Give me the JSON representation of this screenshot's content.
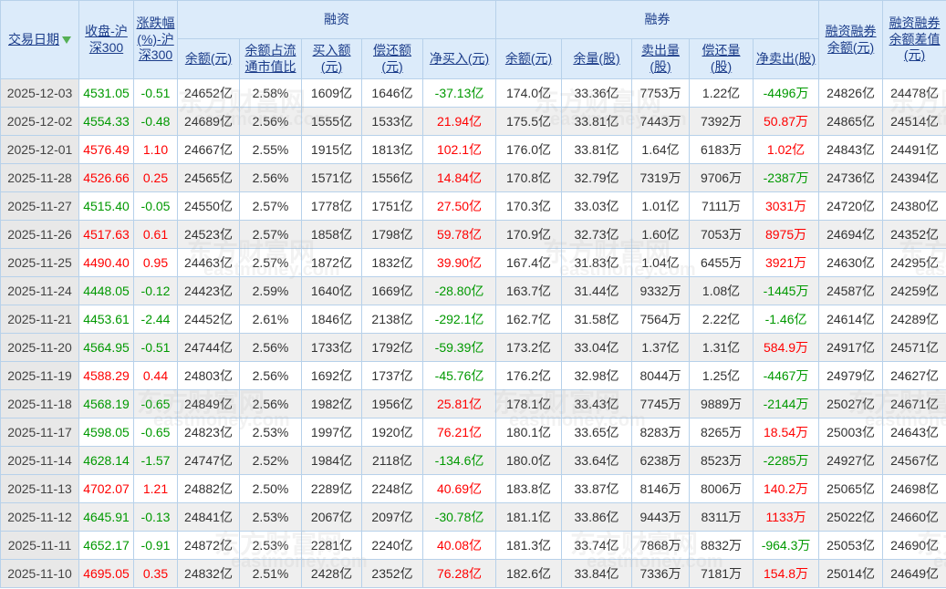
{
  "table": {
    "header": {
      "date": "交易日期",
      "close": "收盘-沪深300",
      "chg": "涨跌幅(%)-沪深300",
      "rz_group": "融资",
      "rq_group": "融券",
      "rzrq_balance": "融资融券余额(元)",
      "rzrq_diff": "融资融券余额差值(元)",
      "sub": [
        "余额(元)",
        "余额占流通市值比",
        "买入额(元)",
        "偿还额(元)",
        "净买入(元)",
        "余额(元)",
        "余量(股)",
        "卖出量(股)",
        "偿还量(股)",
        "净卖出(股)"
      ],
      "sort_icon": "green-down-arrow",
      "sorted_by": "交易日期",
      "sort_direction": "desc"
    },
    "rows": [
      {
        "values": [
          "2025-12-03",
          "4531.05",
          "-0.51",
          "24652亿",
          "2.58%",
          "1609亿",
          "1646亿",
          "-37.13亿",
          "174.0亿",
          "33.36亿",
          "7753万",
          "1.22亿",
          "-4496万",
          "24826亿",
          "24478亿"
        ],
        "colors": [
          "",
          "g",
          "g",
          "",
          "",
          "",
          "",
          "g",
          "",
          "",
          "",
          "",
          "g",
          "",
          ""
        ]
      },
      {
        "values": [
          "2025-12-02",
          "4554.33",
          "-0.48",
          "24689亿",
          "2.56%",
          "1555亿",
          "1533亿",
          "21.94亿",
          "175.5亿",
          "33.81亿",
          "7443万",
          "7392万",
          "50.87万",
          "24865亿",
          "24514亿"
        ],
        "colors": [
          "",
          "g",
          "g",
          "",
          "",
          "",
          "",
          "r",
          "",
          "",
          "",
          "",
          "r",
          "",
          ""
        ]
      },
      {
        "values": [
          "2025-12-01",
          "4576.49",
          "1.10",
          "24667亿",
          "2.55%",
          "1915亿",
          "1813亿",
          "102.1亿",
          "176.0亿",
          "33.81亿",
          "1.64亿",
          "6183万",
          "1.02亿",
          "24843亿",
          "24491亿"
        ],
        "colors": [
          "",
          "r",
          "r",
          "",
          "",
          "",
          "",
          "r",
          "",
          "",
          "",
          "",
          "r",
          "",
          ""
        ]
      },
      {
        "values": [
          "2025-11-28",
          "4526.66",
          "0.25",
          "24565亿",
          "2.56%",
          "1571亿",
          "1556亿",
          "14.84亿",
          "170.8亿",
          "32.79亿",
          "7319万",
          "9706万",
          "-2387万",
          "24736亿",
          "24394亿"
        ],
        "colors": [
          "",
          "r",
          "r",
          "",
          "",
          "",
          "",
          "r",
          "",
          "",
          "",
          "",
          "g",
          "",
          ""
        ]
      },
      {
        "values": [
          "2025-11-27",
          "4515.40",
          "-0.05",
          "24550亿",
          "2.57%",
          "1778亿",
          "1751亿",
          "27.50亿",
          "170.3亿",
          "33.03亿",
          "1.01亿",
          "7111万",
          "3031万",
          "24720亿",
          "24380亿"
        ],
        "colors": [
          "",
          "g",
          "g",
          "",
          "",
          "",
          "",
          "r",
          "",
          "",
          "",
          "",
          "r",
          "",
          ""
        ]
      },
      {
        "values": [
          "2025-11-26",
          "4517.63",
          "0.61",
          "24523亿",
          "2.57%",
          "1858亿",
          "1798亿",
          "59.78亿",
          "170.9亿",
          "32.73亿",
          "1.60亿",
          "7053万",
          "8975万",
          "24694亿",
          "24352亿"
        ],
        "colors": [
          "",
          "r",
          "r",
          "",
          "",
          "",
          "",
          "r",
          "",
          "",
          "",
          "",
          "r",
          "",
          ""
        ]
      },
      {
        "values": [
          "2025-11-25",
          "4490.40",
          "0.95",
          "24463亿",
          "2.57%",
          "1872亿",
          "1832亿",
          "39.90亿",
          "167.4亿",
          "31.83亿",
          "1.04亿",
          "6455万",
          "3921万",
          "24630亿",
          "24295亿"
        ],
        "colors": [
          "",
          "r",
          "r",
          "",
          "",
          "",
          "",
          "r",
          "",
          "",
          "",
          "",
          "r",
          "",
          ""
        ]
      },
      {
        "values": [
          "2025-11-24",
          "4448.05",
          "-0.12",
          "24423亿",
          "2.59%",
          "1640亿",
          "1669亿",
          "-28.80亿",
          "163.7亿",
          "31.44亿",
          "9332万",
          "1.08亿",
          "-1445万",
          "24587亿",
          "24259亿"
        ],
        "colors": [
          "",
          "g",
          "g",
          "",
          "",
          "",
          "",
          "g",
          "",
          "",
          "",
          "",
          "g",
          "",
          ""
        ]
      },
      {
        "values": [
          "2025-11-21",
          "4453.61",
          "-2.44",
          "24452亿",
          "2.61%",
          "1846亿",
          "2138亿",
          "-292.1亿",
          "162.7亿",
          "31.58亿",
          "7564万",
          "2.22亿",
          "-1.46亿",
          "24614亿",
          "24289亿"
        ],
        "colors": [
          "",
          "g",
          "g",
          "",
          "",
          "",
          "",
          "g",
          "",
          "",
          "",
          "",
          "g",
          "",
          ""
        ]
      },
      {
        "values": [
          "2025-11-20",
          "4564.95",
          "-0.51",
          "24744亿",
          "2.56%",
          "1733亿",
          "1792亿",
          "-59.39亿",
          "173.2亿",
          "33.04亿",
          "1.37亿",
          "1.31亿",
          "584.9万",
          "24917亿",
          "24571亿"
        ],
        "colors": [
          "",
          "g",
          "g",
          "",
          "",
          "",
          "",
          "g",
          "",
          "",
          "",
          "",
          "r",
          "",
          ""
        ]
      },
      {
        "values": [
          "2025-11-19",
          "4588.29",
          "0.44",
          "24803亿",
          "2.56%",
          "1692亿",
          "1737亿",
          "-45.76亿",
          "176.2亿",
          "32.98亿",
          "8044万",
          "1.25亿",
          "-4467万",
          "24979亿",
          "24627亿"
        ],
        "colors": [
          "",
          "r",
          "r",
          "",
          "",
          "",
          "",
          "g",
          "",
          "",
          "",
          "",
          "g",
          "",
          ""
        ]
      },
      {
        "values": [
          "2025-11-18",
          "4568.19",
          "-0.65",
          "24849亿",
          "2.56%",
          "1982亿",
          "1956亿",
          "25.81亿",
          "178.1亿",
          "33.43亿",
          "7745万",
          "9889万",
          "-2144万",
          "25027亿",
          "24671亿"
        ],
        "colors": [
          "",
          "g",
          "g",
          "",
          "",
          "",
          "",
          "r",
          "",
          "",
          "",
          "",
          "g",
          "",
          ""
        ]
      },
      {
        "values": [
          "2025-11-17",
          "4598.05",
          "-0.65",
          "24823亿",
          "2.53%",
          "1997亿",
          "1920亿",
          "76.21亿",
          "180.1亿",
          "33.65亿",
          "8283万",
          "8265万",
          "18.54万",
          "25003亿",
          "24643亿"
        ],
        "colors": [
          "",
          "g",
          "g",
          "",
          "",
          "",
          "",
          "r",
          "",
          "",
          "",
          "",
          "r",
          "",
          ""
        ]
      },
      {
        "values": [
          "2025-11-14",
          "4628.14",
          "-1.57",
          "24747亿",
          "2.52%",
          "1984亿",
          "2118亿",
          "-134.6亿",
          "180.0亿",
          "33.64亿",
          "6238万",
          "8523万",
          "-2285万",
          "24927亿",
          "24567亿"
        ],
        "colors": [
          "",
          "g",
          "g",
          "",
          "",
          "",
          "",
          "g",
          "",
          "",
          "",
          "",
          "g",
          "",
          ""
        ]
      },
      {
        "values": [
          "2025-11-13",
          "4702.07",
          "1.21",
          "24882亿",
          "2.50%",
          "2289亿",
          "2248亿",
          "40.69亿",
          "183.8亿",
          "33.87亿",
          "8146万",
          "8006万",
          "140.2万",
          "25065亿",
          "24698亿"
        ],
        "colors": [
          "",
          "r",
          "r",
          "",
          "",
          "",
          "",
          "r",
          "",
          "",
          "",
          "",
          "r",
          "",
          ""
        ]
      },
      {
        "values": [
          "2025-11-12",
          "4645.91",
          "-0.13",
          "24841亿",
          "2.53%",
          "2067亿",
          "2097亿",
          "-30.78亿",
          "181.1亿",
          "33.86亿",
          "9443万",
          "8311万",
          "1133万",
          "25022亿",
          "24660亿"
        ],
        "colors": [
          "",
          "g",
          "g",
          "",
          "",
          "",
          "",
          "g",
          "",
          "",
          "",
          "",
          "r",
          "",
          ""
        ]
      },
      {
        "values": [
          "2025-11-11",
          "4652.17",
          "-0.91",
          "24872亿",
          "2.53%",
          "2281亿",
          "2240亿",
          "40.08亿",
          "181.3亿",
          "33.74亿",
          "7868万",
          "8832万",
          "-964.3万",
          "25053亿",
          "24690亿"
        ],
        "colors": [
          "",
          "g",
          "g",
          "",
          "",
          "",
          "",
          "r",
          "",
          "",
          "",
          "",
          "g",
          "",
          ""
        ]
      },
      {
        "values": [
          "2025-11-10",
          "4695.05",
          "0.35",
          "24832亿",
          "2.51%",
          "2428亿",
          "2352亿",
          "76.28亿",
          "182.6亿",
          "33.84亿",
          "7336万",
          "7181万",
          "154.8万",
          "25014亿",
          "24649亿"
        ],
        "colors": [
          "",
          "r",
          "r",
          "",
          "",
          "",
          "",
          "r",
          "",
          "",
          "",
          "",
          "r",
          "",
          ""
        ]
      }
    ]
  },
  "colors": {
    "positive_red": "#ff0000",
    "negative_green": "#009900",
    "header_bg": "#dcebfa",
    "header_text": "#1c3d8a",
    "grid_border": "#b7d1ea",
    "date_column_bg": "#e8e8e8",
    "alt_row_bg": "#efefef",
    "sort_arrow_green": "#55b055"
  },
  "watermark": {
    "cn": "东方财富网",
    "en": "eastmoney.com"
  }
}
